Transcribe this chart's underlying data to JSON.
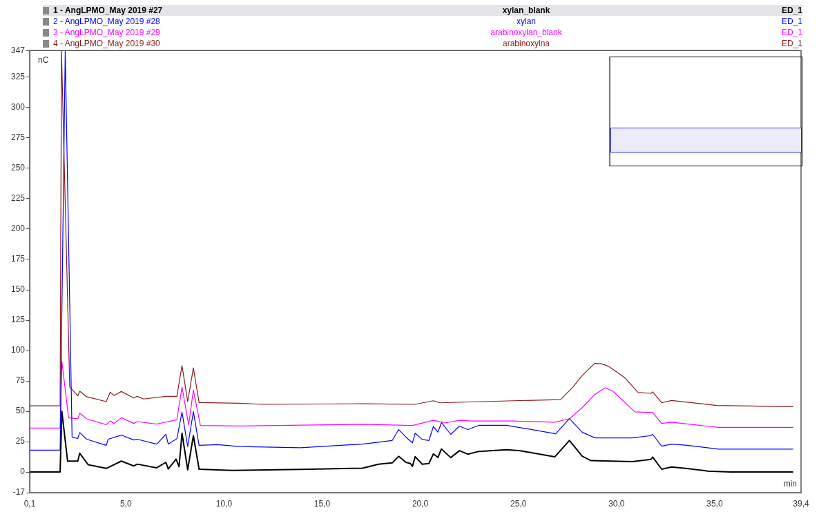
{
  "chart_data": {
    "type": "line",
    "xlabel": "min",
    "ylabel": "nC",
    "legend": "top",
    "grid": false,
    "xlim": [
      0.1,
      39.4
    ],
    "xticks": [
      {
        "value": 0.1,
        "label": "0,1"
      },
      {
        "value": 5,
        "label": "5,0"
      },
      {
        "value": 10,
        "label": "10,0"
      },
      {
        "value": 15,
        "label": "15,0"
      },
      {
        "value": 20,
        "label": "20,0"
      },
      {
        "value": 25,
        "label": "25,0"
      },
      {
        "value": 30,
        "label": "30,0"
      },
      {
        "value": 35,
        "label": "35,0"
      },
      {
        "value": 39.4,
        "label": "39,4"
      }
    ],
    "ylim": [
      -17,
      347
    ],
    "yticks": [
      -17,
      0,
      25,
      50,
      75,
      100,
      125,
      150,
      175,
      200,
      225,
      250,
      275,
      300,
      325,
      347
    ],
    "annotations": [
      "xylan_blank",
      "xylan",
      "arabinoxylan_blank",
      "arabinoxylna",
      "ED_1",
      "ED_1",
      "ED_1",
      "ED_1"
    ],
    "series": [
      {
        "name": "1 - AngLPMO_May 2019 #27",
        "color": "#000000",
        "x": [
          0.1,
          1.65,
          1.74,
          2.03,
          2.55,
          2.65,
          3.08,
          4.0,
          4.77,
          5.4,
          5.58,
          6.57,
          7.04,
          7.16,
          7.56,
          7.71,
          7.86,
          8.15,
          8.44,
          8.73,
          10.42,
          13.9,
          17.06,
          17.87,
          18.57,
          18.9,
          19.27,
          19.5,
          19.6,
          19.74,
          20.1,
          20.44,
          20.67,
          20.9,
          21.08,
          21.55,
          22.0,
          22.42,
          23.0,
          24.4,
          25.1,
          26.85,
          27.6,
          28.25,
          28.7,
          30.8,
          31.75,
          31.84,
          32.3,
          32.8,
          33.6,
          34.65,
          35.8,
          39.0
        ],
        "values": [
          0,
          0,
          50,
          9,
          9,
          15.5,
          6,
          3,
          9,
          5,
          6.5,
          3.5,
          8,
          2.5,
          10.6,
          4.4,
          32,
          1.9,
          30,
          2.3,
          1.3,
          2.2,
          3.2,
          6.4,
          7.5,
          13,
          8,
          7,
          4.6,
          12.6,
          6.4,
          7,
          15,
          12,
          19,
          11.9,
          17.6,
          14.7,
          17,
          18.4,
          17.5,
          12.5,
          26,
          13,
          9.4,
          8.5,
          10.4,
          12.3,
          2.3,
          4.2,
          2.9,
          0.8,
          0,
          0
        ]
      },
      {
        "name": "2 - AngLPMO_May 2019 #28",
        "color": "#0000ff",
        "x": [
          0.1,
          1.65,
          1.91,
          2.26,
          2.55,
          2.65,
          3.0,
          4.0,
          4.1,
          4.77,
          5.4,
          5.58,
          6.57,
          7.04,
          7.16,
          7.6,
          7.86,
          8.15,
          8.44,
          8.73,
          9.68,
          10.77,
          13.9,
          17.06,
          18.57,
          18.9,
          19.27,
          19.6,
          19.74,
          20.1,
          20.44,
          20.67,
          20.9,
          21.08,
          21.55,
          22.0,
          22.42,
          23.0,
          24.4,
          26.9,
          27.6,
          28.25,
          28.9,
          30.8,
          31.75,
          31.84,
          32.3,
          32.8,
          33.6,
          35.2,
          39.0
        ],
        "values": [
          18,
          18,
          347,
          28.7,
          27.6,
          32.5,
          27,
          22,
          27,
          30.4,
          26.4,
          27,
          23,
          31,
          23,
          27.5,
          49.4,
          21,
          49.8,
          22,
          22.6,
          21,
          20,
          23,
          26,
          35,
          28.7,
          24,
          32,
          26.8,
          26,
          37.5,
          32.8,
          40.7,
          31,
          37.8,
          35,
          38.5,
          38.5,
          31.5,
          44,
          32.8,
          28.1,
          28.1,
          30,
          31,
          21.3,
          23,
          22,
          18.9,
          18.9
        ]
      },
      {
        "name": "3 - AngLPMO_May 2019 #29",
        "color": "#ff00ff",
        "x": [
          0.1,
          1.65,
          1.74,
          2.08,
          2.55,
          2.65,
          3.0,
          4.0,
          4.2,
          4.4,
          4.77,
          5.4,
          5.58,
          6.57,
          7.6,
          7.86,
          8.2,
          8.44,
          8.8,
          10.77,
          17.06,
          19.6,
          20.67,
          21.3,
          22.0,
          22.6,
          24.75,
          26.85,
          27.6,
          28.25,
          28.9,
          29.42,
          29.82,
          30.93,
          31.75,
          31.84,
          32.3,
          32.8,
          35.2,
          39.0
        ],
        "values": [
          36.2,
          36.2,
          91,
          44.7,
          43.8,
          48.5,
          43.8,
          39,
          42,
          40,
          44.7,
          40,
          41.5,
          39.5,
          43,
          70,
          38.7,
          67.4,
          38.3,
          37.9,
          39.3,
          38.3,
          42.6,
          40.5,
          42.6,
          42,
          42,
          41,
          43.8,
          53,
          64,
          69.3,
          66.5,
          49.5,
          49,
          49,
          40,
          41,
          36.7,
          36.7
        ]
      },
      {
        "name": "4 - AngLPMO_May 2019 #30",
        "color": "#8b1a1a",
        "x": [
          0.1,
          1.65,
          1.72,
          2.14,
          2.55,
          2.65,
          3.0,
          4.0,
          4.2,
          4.4,
          4.77,
          5.4,
          5.58,
          5.9,
          7.04,
          7.6,
          7.86,
          8.15,
          8.44,
          8.73,
          10.77,
          12.0,
          17.06,
          19.74,
          20.67,
          21.0,
          24.75,
          27.15,
          27.78,
          28.25,
          28.9,
          29.25,
          29.6,
          30.42,
          31.1,
          31.75,
          31.84,
          32.3,
          32.8,
          35.1,
          39.0
        ],
        "values": [
          54.5,
          54.5,
          347,
          70,
          62.7,
          66.5,
          62,
          58,
          65.7,
          63,
          66.3,
          61,
          62.3,
          60.1,
          62.3,
          62.3,
          87.6,
          58,
          85.8,
          57.2,
          56.6,
          55.7,
          56.2,
          55.7,
          58.7,
          57,
          58.7,
          59.6,
          70,
          79.5,
          89.6,
          89,
          87,
          77.7,
          65.4,
          64.8,
          66,
          57,
          58.9,
          54.8,
          53.8
        ]
      }
    ]
  }
}
